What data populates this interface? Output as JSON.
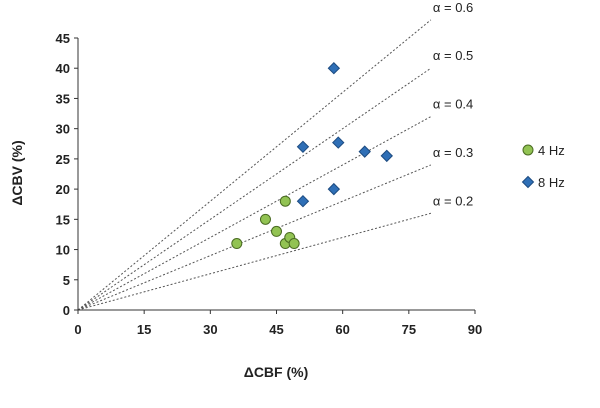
{
  "chart_data": {
    "type": "scatter",
    "xlabel": "ΔCBF (%)",
    "ylabel": "ΔCBV (%)",
    "xlim": [
      0,
      90
    ],
    "ylim": [
      0,
      45
    ],
    "xticks": [
      0,
      15,
      30,
      45,
      60,
      75,
      90
    ],
    "yticks": [
      0,
      5,
      10,
      15,
      20,
      25,
      30,
      35,
      40,
      45
    ],
    "grid": false,
    "legend_position": "right",
    "series": [
      {
        "name": "4 Hz",
        "marker": "circle",
        "color": "#92c353",
        "edge_color": "#4a6b22",
        "points": [
          {
            "x": 36,
            "y": 11
          },
          {
            "x": 42.5,
            "y": 15
          },
          {
            "x": 45,
            "y": 13
          },
          {
            "x": 47,
            "y": 18
          },
          {
            "x": 47,
            "y": 11
          },
          {
            "x": 48,
            "y": 12
          },
          {
            "x": 49,
            "y": 11
          }
        ]
      },
      {
        "name": "8 Hz",
        "marker": "diamond",
        "color": "#2f6fb6",
        "edge_color": "#1d4b80",
        "points": [
          {
            "x": 51,
            "y": 27
          },
          {
            "x": 51,
            "y": 18
          },
          {
            "x": 58,
            "y": 40
          },
          {
            "x": 58,
            "y": 20
          },
          {
            "x": 59,
            "y": 27.7
          },
          {
            "x": 65,
            "y": 26.2
          },
          {
            "x": 70,
            "y": 25.5
          }
        ]
      }
    ],
    "reference_lines": [
      {
        "label": "α = 0.6",
        "alpha": 0.6,
        "x_end": 80
      },
      {
        "label": "α = 0.5",
        "alpha": 0.5,
        "x_end": 80
      },
      {
        "label": "α = 0.4",
        "alpha": 0.4,
        "x_end": 80
      },
      {
        "label": "α = 0.3",
        "alpha": 0.3,
        "x_end": 80
      },
      {
        "label": "α = 0.2",
        "alpha": 0.2,
        "x_end": 80
      }
    ]
  }
}
